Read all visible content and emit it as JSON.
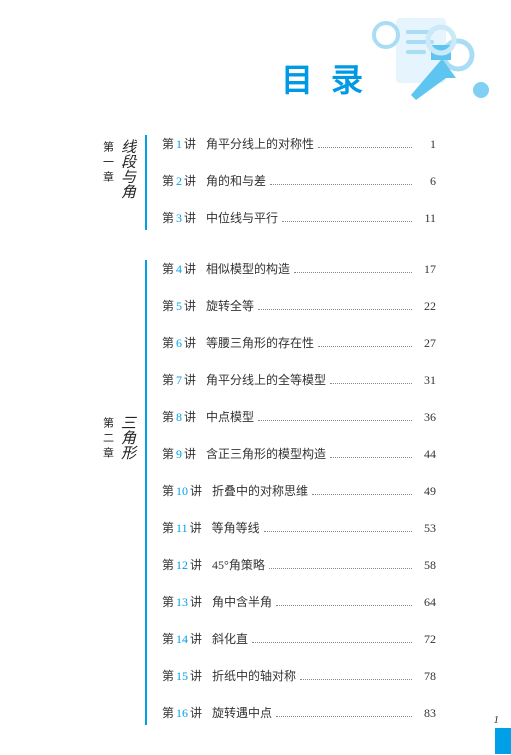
{
  "title": "目录",
  "decoration": {
    "bg_rect": "#e6f4fd",
    "arrow": "#5ec5f0",
    "circle_outline": "#a8ddf5",
    "circle_fill": "#7fd0f2",
    "bar": "#a8ddf5"
  },
  "accent": "#00a0e9",
  "chapters": [
    {
      "num": "第一章",
      "title": "线段与角",
      "label_class": "chapter1-label",
      "lessons": [
        {
          "n": "1",
          "title": "角平分线上的对称性",
          "page": "1"
        },
        {
          "n": "2",
          "title": "角的和与差",
          "page": "6"
        },
        {
          "n": "3",
          "title": "中位线与平行",
          "page": "11"
        }
      ]
    },
    {
      "num": "第二章",
      "title": "三角形",
      "label_class": "chapter2-label",
      "lessons": [
        {
          "n": "4",
          "title": "相似模型的构造",
          "page": "17"
        },
        {
          "n": "5",
          "title": "旋转全等",
          "page": "22"
        },
        {
          "n": "6",
          "title": "等腰三角形的存在性",
          "page": "27"
        },
        {
          "n": "7",
          "title": "角平分线上的全等模型",
          "page": "31"
        },
        {
          "n": "8",
          "title": "中点模型",
          "page": "36"
        },
        {
          "n": "9",
          "title": "含正三角形的模型构造",
          "page": "44"
        },
        {
          "n": "10",
          "title": "折叠中的对称思维",
          "page": "49"
        },
        {
          "n": "11",
          "title": "等角等线",
          "page": "53"
        },
        {
          "n": "12",
          "title": "45°角策略",
          "page": "58"
        },
        {
          "n": "13",
          "title": "角中含半角",
          "page": "64"
        },
        {
          "n": "14",
          "title": "斜化直",
          "page": "72"
        },
        {
          "n": "15",
          "title": "折纸中的轴对称",
          "page": "78"
        },
        {
          "n": "16",
          "title": "旋转遇中点",
          "page": "83"
        }
      ]
    }
  ],
  "footer_page": "1"
}
